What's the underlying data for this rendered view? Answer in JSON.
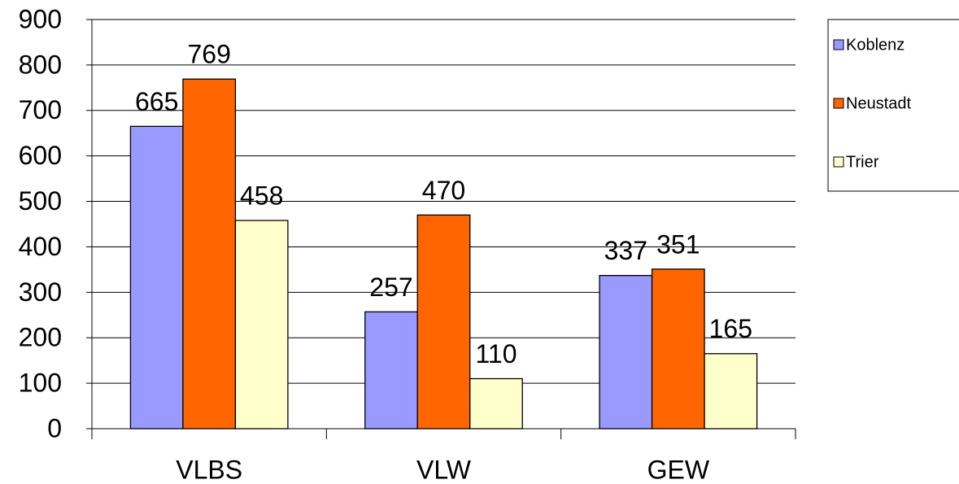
{
  "chart_data": {
    "type": "bar",
    "categories": [
      "VLBS",
      "VLW",
      "GEW"
    ],
    "series": [
      {
        "name": "Koblenz",
        "color": "#9999ff",
        "values": [
          665,
          257,
          337
        ]
      },
      {
        "name": "Neustadt",
        "color": "#ff6600",
        "values": [
          769,
          470,
          351
        ]
      },
      {
        "name": "Trier",
        "color": "#ffffcc",
        "values": [
          458,
          110,
          165
        ]
      }
    ],
    "ylim": [
      0,
      900
    ],
    "yticks": [
      0,
      100,
      200,
      300,
      400,
      500,
      600,
      700,
      800,
      900
    ],
    "grid": true,
    "legend": "right",
    "data_labels": true
  }
}
